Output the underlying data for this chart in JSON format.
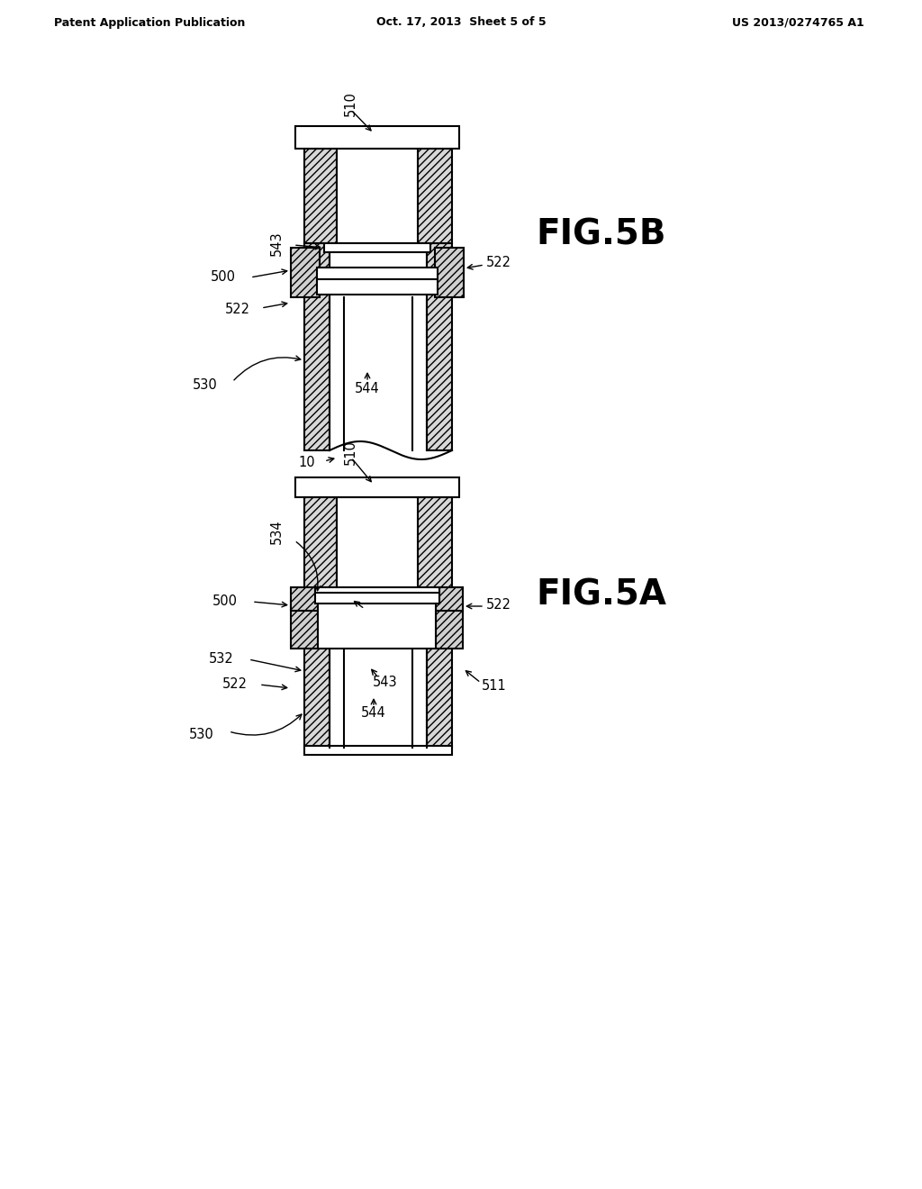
{
  "background_color": "#ffffff",
  "header_left": "Patent Application Publication",
  "header_center": "Oct. 17, 2013  Sheet 5 of 5",
  "header_right": "US 2013/0274765 A1",
  "fig5b_label": "FIG.5B",
  "fig5a_label": "FIG.5A"
}
